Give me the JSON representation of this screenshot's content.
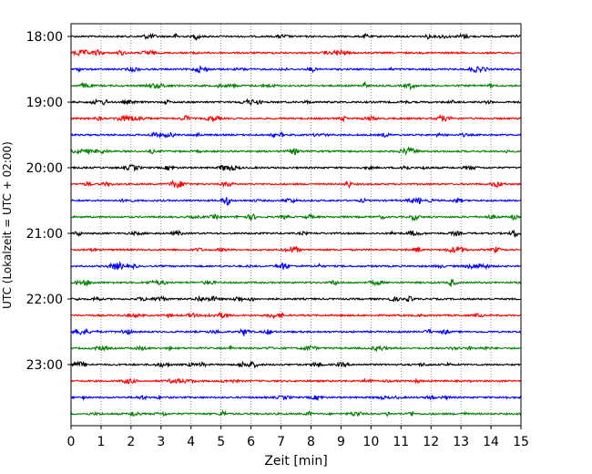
{
  "chart_data": {
    "type": "line",
    "title": "",
    "xlabel": "Zeit  [min]",
    "ylabel": "UTC (Lokalzeit = UTC + 02:00)",
    "xlim": [
      0,
      15
    ],
    "x_ticks": [
      "0",
      "1",
      "2",
      "3",
      "4",
      "5",
      "6",
      "7",
      "8",
      "9",
      "10",
      "11",
      "12",
      "13",
      "14",
      "15"
    ],
    "y_tick_labels": [
      "18:00",
      "19:00",
      "20:00",
      "21:00",
      "22:00",
      "23:00"
    ],
    "grid": "vertical dotted at each minute",
    "trace_interval_minutes": 15,
    "trace_colors": [
      "#000000",
      "#ff0000",
      "#0000ff",
      "#008000"
    ],
    "series": [
      {
        "start": "18:00",
        "color": "#000000"
      },
      {
        "start": "18:15",
        "color": "#ff0000"
      },
      {
        "start": "18:30",
        "color": "#0000ff"
      },
      {
        "start": "18:45",
        "color": "#008000"
      },
      {
        "start": "19:00",
        "color": "#000000"
      },
      {
        "start": "19:15",
        "color": "#ff0000"
      },
      {
        "start": "19:30",
        "color": "#0000ff"
      },
      {
        "start": "19:45",
        "color": "#008000"
      },
      {
        "start": "20:00",
        "color": "#000000"
      },
      {
        "start": "20:15",
        "color": "#ff0000"
      },
      {
        "start": "20:30",
        "color": "#0000ff"
      },
      {
        "start": "20:45",
        "color": "#008000"
      },
      {
        "start": "21:00",
        "color": "#000000"
      },
      {
        "start": "21:15",
        "color": "#ff0000"
      },
      {
        "start": "21:30",
        "color": "#0000ff"
      },
      {
        "start": "21:45",
        "color": "#008000"
      },
      {
        "start": "22:00",
        "color": "#000000"
      },
      {
        "start": "22:15",
        "color": "#ff0000"
      },
      {
        "start": "22:30",
        "color": "#0000ff"
      },
      {
        "start": "22:45",
        "color": "#008000"
      },
      {
        "start": "23:00",
        "color": "#000000"
      },
      {
        "start": "23:15",
        "color": "#ff0000"
      },
      {
        "start": "23:30",
        "color": "#0000ff"
      },
      {
        "start": "23:45",
        "color": "#008000"
      }
    ]
  }
}
